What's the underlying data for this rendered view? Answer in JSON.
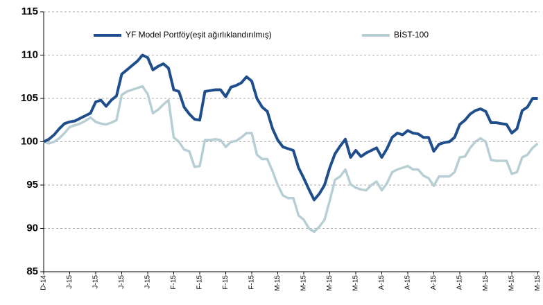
{
  "chart_data": {
    "type": "line",
    "categories": [
      "D-14",
      null,
      null,
      null,
      null,
      "J-15",
      null,
      null,
      null,
      null,
      "J-15",
      null,
      null,
      null,
      null,
      "J-15",
      null,
      null,
      null,
      null,
      "J-15",
      null,
      null,
      null,
      null,
      "F-15",
      null,
      null,
      null,
      null,
      "F-15",
      null,
      null,
      null,
      null,
      "F-15",
      null,
      null,
      null,
      null,
      "F-15",
      null,
      null,
      null,
      null,
      "M-15",
      null,
      null,
      null,
      null,
      "M-15",
      null,
      null,
      null,
      null,
      "M-15",
      null,
      null,
      null,
      null,
      "M-15",
      null,
      null,
      null,
      null,
      "A-15",
      null,
      null,
      null,
      null,
      "A-15",
      null,
      null,
      null,
      null,
      "A-15",
      null,
      null,
      null,
      null,
      "A-15",
      null,
      null,
      null,
      null,
      "M-15",
      null,
      null,
      null,
      null,
      "M-15",
      null,
      null,
      null,
      null,
      "M-15"
    ],
    "series": [
      {
        "name": "YF Model Portföy(eşit ağırlıklandırılmış)",
        "color": "#1f4e8c",
        "values": [
          100,
          100.3,
          100.8,
          101.5,
          102.1,
          102.3,
          102.4,
          102.7,
          103,
          103.3,
          104.6,
          104.8,
          104.1,
          104.8,
          105.3,
          107.8,
          108.3,
          108.8,
          109.3,
          110,
          109.7,
          108.3,
          108.7,
          109,
          108.5,
          106,
          105.8,
          104,
          103.2,
          102.6,
          102.5,
          105.8,
          105.9,
          106,
          106,
          105.2,
          106.3,
          106.5,
          106.8,
          107.5,
          107,
          105,
          104,
          103.5,
          101.5,
          100.2,
          99.4,
          99.2,
          99,
          97,
          95.8,
          94.5,
          93.3,
          94,
          95,
          97,
          98.6,
          99.5,
          100.3,
          98.2,
          99,
          98.3,
          98.7,
          99,
          99.3,
          98.2,
          99.2,
          100.5,
          101,
          100.8,
          101.3,
          101,
          100.9,
          100.5,
          100.5,
          98.9,
          99.7,
          99.9,
          100,
          100.5,
          102,
          102.5,
          103.2,
          103.6,
          103.8,
          103.5,
          102.2,
          102.2,
          102.1,
          102,
          101,
          101.5,
          103.6,
          104,
          105,
          105
        ]
      },
      {
        "name": "BİST-100",
        "color": "#b7cfd4",
        "values": [
          100,
          99.8,
          100,
          100.4,
          101,
          101.7,
          101.9,
          102.1,
          102.4,
          102.8,
          102.3,
          102.1,
          102,
          102.2,
          102.5,
          105.4,
          105.8,
          106,
          106.2,
          106.4,
          105.5,
          103.3,
          103.7,
          104.3,
          104.8,
          100.5,
          100,
          99.1,
          98.9,
          97.1,
          97.2,
          100.2,
          100.2,
          100.3,
          100.2,
          99.4,
          100,
          100.1,
          100.5,
          101,
          101,
          98.5,
          98,
          98,
          96.6,
          95,
          93.8,
          93.5,
          93.5,
          91.5,
          91,
          90,
          89.6,
          90.2,
          91,
          93.2,
          95.6,
          96,
          96.8,
          95.1,
          94.7,
          94.5,
          94.4,
          95,
          95.4,
          94.4,
          95.2,
          96.5,
          96.8,
          97,
          97.2,
          96.8,
          96.8,
          96.1,
          95.8,
          94.9,
          96,
          96,
          96,
          96.5,
          98.2,
          98.3,
          99.3,
          100,
          100.4,
          100,
          97.9,
          97.8,
          97.8,
          97.8,
          96.3,
          96.5,
          98.2,
          98.5,
          99.3,
          99.8
        ]
      }
    ],
    "ylim": [
      85,
      115
    ],
    "yticks": [
      85,
      90,
      95,
      100,
      105,
      110,
      115
    ],
    "grid": true,
    "legend": "top"
  }
}
